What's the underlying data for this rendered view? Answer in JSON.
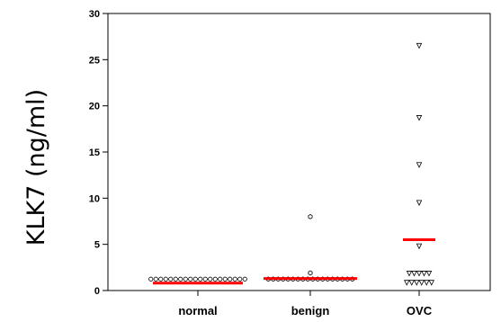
{
  "chart_data": {
    "type": "scatter",
    "title": "",
    "xlabel": "",
    "ylabel": "KLK7 (ng/ml)",
    "ylim": [
      0,
      30
    ],
    "yticks": [
      0,
      5,
      10,
      15,
      20,
      25,
      30
    ],
    "grid": false,
    "legend": "none",
    "categories": [
      "normal",
      "benign",
      "OVC"
    ],
    "series": [
      {
        "category": "normal",
        "marker": "circle",
        "values": [
          0.8,
          0.8,
          0.8,
          0.8,
          0.8,
          0.8,
          0.8,
          0.8,
          0.8,
          0.8,
          0.8,
          0.8,
          0.8,
          0.8,
          0.8,
          0.8,
          0.8,
          0.8,
          0.8,
          0.8
        ],
        "mean": 0.8
      },
      {
        "category": "benign",
        "marker": "hexagon",
        "values": [
          8.0,
          1.9,
          0.8,
          0.8,
          0.8,
          0.8,
          0.8,
          0.8,
          0.8,
          0.8,
          0.8,
          0.8,
          0.8,
          0.8,
          0.8,
          0.8,
          0.8,
          0.8,
          0.8,
          0.8
        ],
        "mean": 1.3
      },
      {
        "category": "OVC",
        "marker": "triangle-down",
        "values": [
          26.5,
          18.7,
          13.6,
          9.5,
          4.8,
          1.8,
          1.8,
          1.8,
          1.8,
          1.8,
          0.8,
          0.8,
          0.8,
          0.8,
          0.8,
          0.8
        ],
        "mean": 5.5
      }
    ],
    "mean_line_color": "#ff0000",
    "marker_stroke": "#000000",
    "marker_fill": "#ffffff"
  }
}
